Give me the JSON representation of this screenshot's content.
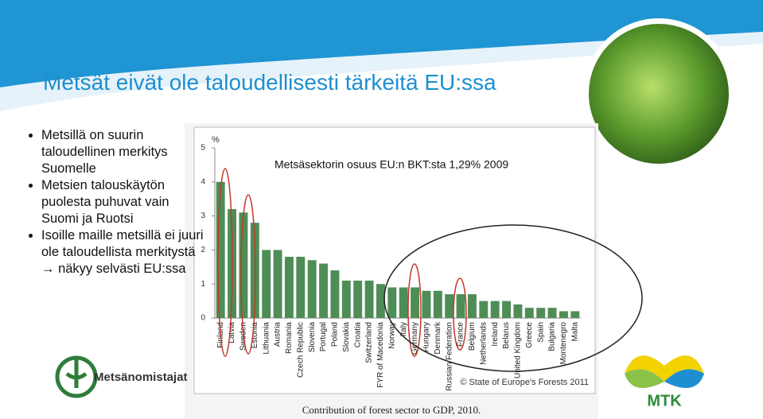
{
  "slide": {
    "title": "Metsät eivät ole taloudellisesti tärkeitä EU:ssa",
    "bullets": [
      "Metsillä on suurin taloudellinen merkitys Suomelle",
      "Metsien talouskäytön puolesta puhuvat vain Suomi ja Ruotsi",
      "Isoille maille metsillä ei juuri ole taloudellista merkitystä → näkyy selvästi EU:ssa"
    ],
    "logo_left": "Metsänomistajat",
    "logo_right": "MTK"
  },
  "chart_data": {
    "type": "bar",
    "y_unit": "%",
    "annotation": "Metsäsektorin osuus EU:n BKT:sta 1,29% 2009",
    "source": "© State of Europe's Forests 2011",
    "caption": "Contribution of forest sector to GDP, 2010.",
    "categories": [
      "Finland",
      "Latvia",
      "Sweden",
      "Estonia",
      "Lithuania",
      "Austria",
      "Romania",
      "Czech Republic",
      "Slovenia",
      "Portugal",
      "Poland",
      "Slovakia",
      "Croatia",
      "Switzerland",
      "FYR of Macedonia",
      "Norway",
      "Italy",
      "Germany",
      "Hungary",
      "Denmark",
      "Russian Federation",
      "France",
      "Belgium",
      "Netherlands",
      "Ireland",
      "Belarus",
      "United Kingdom",
      "Greece",
      "Spain",
      "Bulgaria",
      "Montenegro",
      "Malta"
    ],
    "values": [
      4.0,
      3.2,
      3.1,
      2.8,
      2.0,
      2.0,
      1.8,
      1.8,
      1.7,
      1.6,
      1.4,
      1.1,
      1.1,
      1.1,
      1.0,
      0.9,
      0.9,
      0.9,
      0.8,
      0.8,
      0.7,
      0.7,
      0.7,
      0.5,
      0.5,
      0.5,
      0.4,
      0.3,
      0.3,
      0.3,
      0.2,
      0.2
    ],
    "color": "#4f8d57",
    "ylim": [
      0,
      5
    ],
    "yticks": [
      0,
      1,
      2,
      3,
      4,
      5
    ]
  }
}
